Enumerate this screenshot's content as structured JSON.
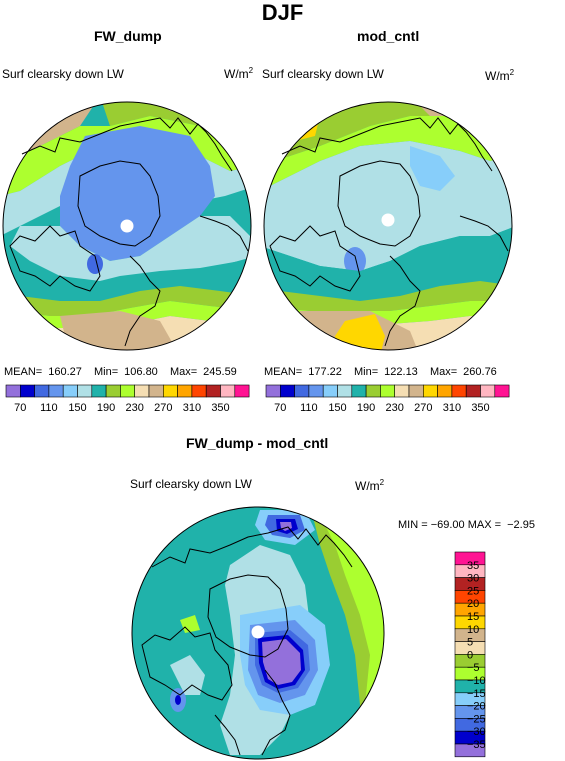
{
  "main_title": "DJF",
  "panels": [
    {
      "title": "FW_dump",
      "variable": "Surf clearsky down LW",
      "units": "W/m",
      "units_exp": "2",
      "mean_label": "MEAN=",
      "mean": "160.27",
      "min_label": "Min=",
      "min": "106.80",
      "max_label": "Max=",
      "max": "245.59"
    },
    {
      "title": "mod_cntl",
      "variable": "Surf clearsky down LW",
      "units": "W/m",
      "units_exp": "2",
      "mean_label": "MEAN=",
      "mean": "177.22",
      "min_label": "Min=",
      "min": "122.13",
      "max_label": "Max=",
      "max": "260.76"
    }
  ],
  "top_colorbar": {
    "colors": [
      "#9370db",
      "#0000cd",
      "#4169e1",
      "#6495ed",
      "#87cefa",
      "#b0e0e6",
      "#20b2aa",
      "#9acd32",
      "#adff2f",
      "#f5deb3",
      "#d2b48c",
      "#ffd700",
      "#ffa500",
      "#ff4500",
      "#b22222",
      "#ffb6c1",
      "#ff1493"
    ],
    "labels": [
      "70",
      "110",
      "150",
      "190",
      "230",
      "270",
      "310",
      "350"
    ]
  },
  "diff": {
    "title": "FW_dump - mod_cntl",
    "variable": "Surf clearsky down LW",
    "units": "W/m",
    "units_exp": "2",
    "stats": "MIN = −69.00 MAX =  −2.95"
  },
  "diff_colorbar": {
    "colors": [
      "#ff1493",
      "#ffb6c1",
      "#b22222",
      "#ff4500",
      "#ffa500",
      "#ffd700",
      "#d2b48c",
      "#f5deb3",
      "#9acd32",
      "#adff2f",
      "#20b2aa",
      "#87cefa",
      "#6495ed",
      "#4169e1",
      "#0000cd",
      "#9370db"
    ],
    "labels": [
      "35",
      "30",
      "25",
      "20",
      "15",
      "10",
      "5",
      "0",
      "−5",
      "−10",
      "−15",
      "−20",
      "−25",
      "−30",
      "−35"
    ]
  }
}
